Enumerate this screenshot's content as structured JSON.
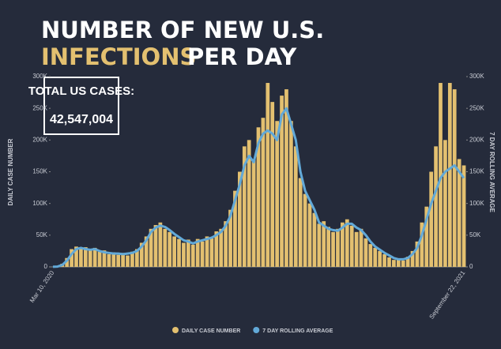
{
  "chart_data": {
    "type": "bar_line",
    "title": "NUMBER OF NEW U.S.",
    "title_highlight": "INFECTIONS",
    "title_rest": "PER DAY",
    "total_label": "TOTAL US CASES:",
    "total_value": "42,547,004",
    "y_label": "DAILY CASE NUMBER",
    "y2_label": "7 DAY ROLLING AVERAGE",
    "categories": [
      "Mar 10, 2020",
      null,
      null,
      null,
      null,
      null,
      null,
      null,
      null,
      null,
      null,
      null,
      null,
      null,
      null,
      null,
      null,
      null,
      null,
      null,
      null,
      null,
      null,
      null,
      null,
      null,
      null,
      null,
      null,
      null,
      null,
      null,
      null,
      null,
      null,
      null,
      null,
      null,
      null,
      null,
      null,
      null,
      null,
      null,
      null,
      null,
      null,
      null,
      null,
      null,
      null,
      null,
      null,
      null,
      null,
      null,
      null,
      null,
      null,
      null,
      null,
      null,
      null,
      null,
      null,
      null,
      null,
      null,
      null,
      null,
      null,
      null,
      null,
      null,
      null,
      null,
      null,
      null,
      null,
      null,
      null,
      null,
      null,
      null,
      null,
      null,
      null,
      null,
      "September 22, 2021"
    ],
    "series": [
      {
        "name": "DAILY CASE NUMBER",
        "color": "#e3c070",
        "kind": "bar",
        "values": [
          0,
          1000,
          5000,
          14000,
          28000,
          32000,
          29000,
          31000,
          26000,
          30000,
          24000,
          26000,
          20000,
          23000,
          19000,
          22000,
          18000,
          24000,
          28000,
          38000,
          48000,
          60000,
          66000,
          70000,
          60000,
          55000,
          48000,
          44000,
          38000,
          43000,
          35000,
          44000,
          40000,
          48000,
          45000,
          56000,
          60000,
          72000,
          90000,
          120000,
          150000,
          190000,
          200000,
          170000,
          220000,
          235000,
          290000,
          260000,
          230000,
          270000,
          280000,
          230000,
          190000,
          140000,
          115000,
          100000,
          85000,
          68000,
          72000,
          63000,
          55000,
          60000,
          70000,
          75000,
          65000,
          55000,
          60000,
          45000,
          36000,
          30000,
          25000,
          20000,
          15000,
          11000,
          13000,
          10000,
          16000,
          25000,
          40000,
          70000,
          95000,
          150000,
          190000,
          290000,
          200000,
          290000,
          280000,
          170000,
          160000
        ]
      },
      {
        "name": "7 DAY ROLLING AVERAGE",
        "color": "#62a9d8",
        "kind": "line",
        "axis": "y2",
        "values": [
          100,
          500,
          3000,
          10000,
          20000,
          28000,
          30000,
          28000,
          27000,
          28000,
          25000,
          23000,
          22000,
          21000,
          21000,
          20000,
          21000,
          22000,
          25000,
          32000,
          42000,
          55000,
          62000,
          65000,
          63000,
          58000,
          52000,
          47000,
          42000,
          40000,
          37000,
          40000,
          42000,
          44000,
          46000,
          50000,
          55000,
          65000,
          80000,
          105000,
          130000,
          160000,
          175000,
          165000,
          195000,
          210000,
          215000,
          210000,
          200000,
          240000,
          250000,
          225000,
          200000,
          150000,
          120000,
          105000,
          90000,
          70000,
          65000,
          60000,
          58000,
          57000,
          62000,
          68000,
          68000,
          62000,
          58000,
          50000,
          40000,
          32000,
          27000,
          22000,
          18000,
          14000,
          12000,
          12000,
          14000,
          20000,
          30000,
          50000,
          75000,
          100000,
          120000,
          140000,
          150000,
          155000,
          160000,
          150000,
          140000
        ]
      }
    ],
    "ylim": [
      0,
      300000
    ],
    "yticks": [
      0,
      {
        "value": 50000,
        "label": "50K"
      },
      {
        "value": 100000,
        "label": "100K"
      },
      {
        "value": 150000,
        "label": "150K"
      },
      {
        "value": 200000,
        "label": "200K"
      },
      {
        "value": 250000,
        "label": "250K"
      },
      {
        "value": 300000,
        "label": "300K"
      }
    ],
    "y2lim": [
      0,
      300000
    ],
    "y2ticks": [
      0,
      {
        "value": 50000,
        "label": "50K"
      },
      {
        "value": 100000,
        "label": "100K"
      },
      {
        "value": 150000,
        "label": "150K"
      },
      {
        "value": 200000,
        "label": "200K"
      },
      {
        "value": 250000,
        "label": "250K"
      },
      {
        "value": 300000,
        "label": "300K"
      }
    ],
    "legend": "bottom"
  }
}
